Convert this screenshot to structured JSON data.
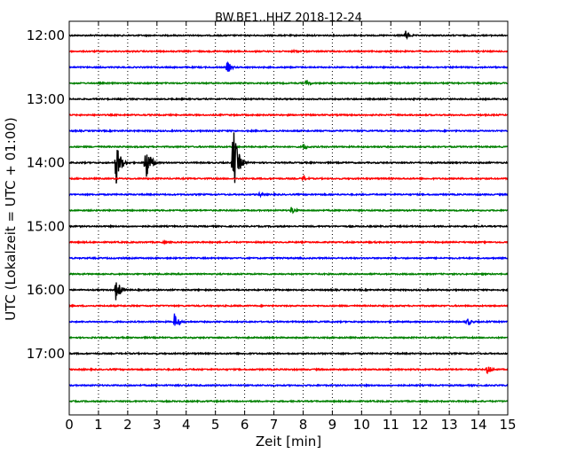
{
  "chart_data": {
    "type": "line",
    "title": "BW.BE1..HHZ 2018-12-24",
    "xlabel": "Zeit  [min]",
    "ylabel": "UTC (Lokalzeit = UTC + 01:00)",
    "xlim": [
      0,
      15
    ],
    "x_ticks": [
      "0",
      "1",
      "2",
      "3",
      "4",
      "5",
      "6",
      "7",
      "8",
      "9",
      "10",
      "11",
      "12",
      "13",
      "14",
      "15"
    ],
    "y_tick_labels": [
      "12:00",
      "13:00",
      "14:00",
      "15:00",
      "16:00",
      "17:00"
    ],
    "row_interval_minutes": 15,
    "start_time": "12:00",
    "grid": "vertical dotted",
    "colors": [
      "#000000",
      "#ff0000",
      "#0000ff",
      "#008000"
    ],
    "traces": [
      {
        "time": "12:00",
        "color": "#000000",
        "events": [
          {
            "x": 11.5,
            "amp": 6
          }
        ]
      },
      {
        "time": "12:15",
        "color": "#ff0000",
        "events": [
          {
            "x": 7.7,
            "amp": 2
          }
        ]
      },
      {
        "time": "12:30",
        "color": "#0000ff",
        "events": [
          {
            "x": 5.4,
            "amp": 7
          }
        ]
      },
      {
        "time": "12:45",
        "color": "#008000",
        "events": [
          {
            "x": 8.1,
            "amp": 4
          }
        ]
      },
      {
        "time": "13:00",
        "color": "#000000",
        "events": []
      },
      {
        "time": "13:15",
        "color": "#ff0000",
        "events": []
      },
      {
        "time": "13:30",
        "color": "#0000ff",
        "events": []
      },
      {
        "time": "13:45",
        "color": "#008000",
        "events": [
          {
            "x": 8.0,
            "amp": 5
          }
        ]
      },
      {
        "time": "14:00",
        "color": "#000000",
        "events": [
          {
            "x": 1.6,
            "amp": 26
          },
          {
            "x": 2.6,
            "amp": 26
          },
          {
            "x": 5.6,
            "amp": 44
          }
        ]
      },
      {
        "time": "14:15",
        "color": "#ff0000",
        "events": [
          {
            "x": 8.0,
            "amp": 4
          }
        ]
      },
      {
        "time": "14:30",
        "color": "#0000ff",
        "events": [
          {
            "x": 6.5,
            "amp": 3
          }
        ]
      },
      {
        "time": "14:45",
        "color": "#008000",
        "events": [
          {
            "x": 7.6,
            "amp": 5
          }
        ]
      },
      {
        "time": "15:00",
        "color": "#000000",
        "events": []
      },
      {
        "time": "15:15",
        "color": "#ff0000",
        "events": [
          {
            "x": 3.2,
            "amp": 2
          }
        ]
      },
      {
        "time": "15:30",
        "color": "#0000ff",
        "events": []
      },
      {
        "time": "15:45",
        "color": "#008000",
        "events": []
      },
      {
        "time": "16:00",
        "color": "#000000",
        "events": [
          {
            "x": 1.6,
            "amp": 14
          }
        ]
      },
      {
        "time": "16:15",
        "color": "#ff0000",
        "events": []
      },
      {
        "time": "16:30",
        "color": "#0000ff",
        "events": [
          {
            "x": 3.6,
            "amp": 10
          },
          {
            "x": 13.6,
            "amp": 6
          }
        ]
      },
      {
        "time": "16:45",
        "color": "#008000",
        "events": []
      },
      {
        "time": "17:00",
        "color": "#000000",
        "events": []
      },
      {
        "time": "17:15",
        "color": "#ff0000",
        "events": [
          {
            "x": 14.3,
            "amp": 6
          }
        ]
      },
      {
        "time": "17:30",
        "color": "#0000ff",
        "events": []
      },
      {
        "time": "17:45",
        "color": "#008000",
        "events": []
      }
    ]
  }
}
